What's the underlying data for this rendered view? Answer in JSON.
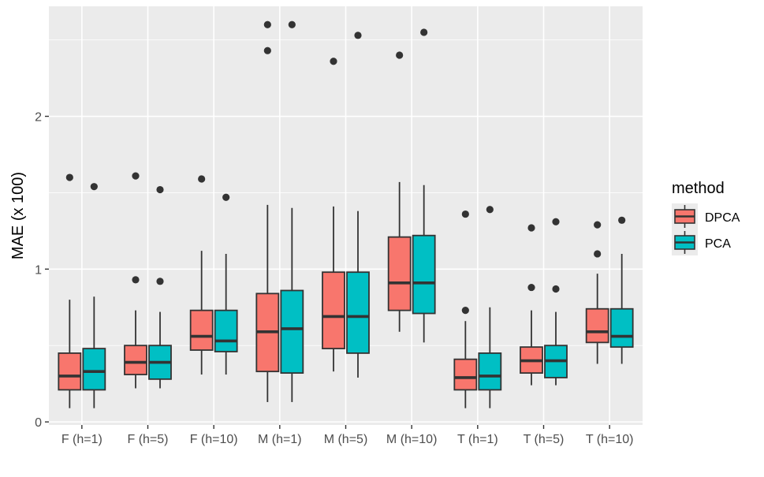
{
  "chart_data": {
    "type": "boxplot",
    "title": "",
    "xlabel": "",
    "ylabel": "MAE (x 100)",
    "ylim": [
      -0.02,
      2.72
    ],
    "y_ticks": [
      0,
      1,
      2
    ],
    "y_tick_labels": [
      "0",
      "1",
      "2"
    ],
    "categories": [
      "F (h=1)",
      "F (h=5)",
      "F (h=10)",
      "M (h=1)",
      "M (h=5)",
      "M (h=10)",
      "T (h=1)",
      "T (h=5)",
      "T (h=10)"
    ],
    "legend": {
      "title": "method",
      "position": "right"
    },
    "series": [
      {
        "name": "DPCA",
        "color": "#F8766D",
        "boxes": [
          {
            "min": 0.09,
            "q1": 0.21,
            "median": 0.3,
            "q3": 0.45,
            "max": 0.8,
            "outliers": [
              1.6
            ]
          },
          {
            "min": 0.22,
            "q1": 0.31,
            "median": 0.39,
            "q3": 0.5,
            "max": 0.73,
            "outliers": [
              0.93,
              1.61
            ]
          },
          {
            "min": 0.31,
            "q1": 0.47,
            "median": 0.56,
            "q3": 0.73,
            "max": 1.12,
            "outliers": [
              1.59
            ]
          },
          {
            "min": 0.13,
            "q1": 0.33,
            "median": 0.59,
            "q3": 0.84,
            "max": 1.42,
            "outliers": [
              2.43,
              2.6
            ]
          },
          {
            "min": 0.33,
            "q1": 0.48,
            "median": 0.69,
            "q3": 0.98,
            "max": 1.41,
            "outliers": [
              2.36
            ]
          },
          {
            "min": 0.59,
            "q1": 0.73,
            "median": 0.91,
            "q3": 1.21,
            "max": 1.57,
            "outliers": [
              2.4
            ]
          },
          {
            "min": 0.09,
            "q1": 0.21,
            "median": 0.29,
            "q3": 0.41,
            "max": 0.66,
            "outliers": [
              0.73,
              1.36
            ]
          },
          {
            "min": 0.24,
            "q1": 0.32,
            "median": 0.4,
            "q3": 0.49,
            "max": 0.73,
            "outliers": [
              0.88,
              1.27
            ]
          },
          {
            "min": 0.38,
            "q1": 0.52,
            "median": 0.59,
            "q3": 0.74,
            "max": 0.97,
            "outliers": [
              1.1,
              1.29
            ]
          }
        ]
      },
      {
        "name": "PCA",
        "color": "#00BFC4",
        "boxes": [
          {
            "min": 0.09,
            "q1": 0.21,
            "median": 0.33,
            "q3": 0.48,
            "max": 0.82,
            "outliers": [
              1.54
            ]
          },
          {
            "min": 0.22,
            "q1": 0.28,
            "median": 0.39,
            "q3": 0.5,
            "max": 0.72,
            "outliers": [
              0.92,
              1.52
            ]
          },
          {
            "min": 0.31,
            "q1": 0.46,
            "median": 0.53,
            "q3": 0.73,
            "max": 1.1,
            "outliers": [
              1.47
            ]
          },
          {
            "min": 0.13,
            "q1": 0.32,
            "median": 0.61,
            "q3": 0.86,
            "max": 1.4,
            "outliers": [
              2.6
            ]
          },
          {
            "min": 0.29,
            "q1": 0.45,
            "median": 0.69,
            "q3": 0.98,
            "max": 1.38,
            "outliers": [
              2.53
            ]
          },
          {
            "min": 0.52,
            "q1": 0.71,
            "median": 0.91,
            "q3": 1.22,
            "max": 1.55,
            "outliers": [
              2.55
            ]
          },
          {
            "min": 0.09,
            "q1": 0.21,
            "median": 0.3,
            "q3": 0.45,
            "max": 0.75,
            "outliers": [
              1.39
            ]
          },
          {
            "min": 0.24,
            "q1": 0.29,
            "median": 0.4,
            "q3": 0.5,
            "max": 0.72,
            "outliers": [
              0.87,
              1.31
            ]
          },
          {
            "min": 0.38,
            "q1": 0.49,
            "median": 0.56,
            "q3": 0.74,
            "max": 1.1,
            "outliers": [
              1.32
            ]
          }
        ]
      }
    ]
  },
  "colors": {
    "panel_background": "#EBEBEB",
    "grid_major": "#FFFFFF",
    "box_outline": "#333333",
    "tick_text": "#4D4D4D"
  }
}
